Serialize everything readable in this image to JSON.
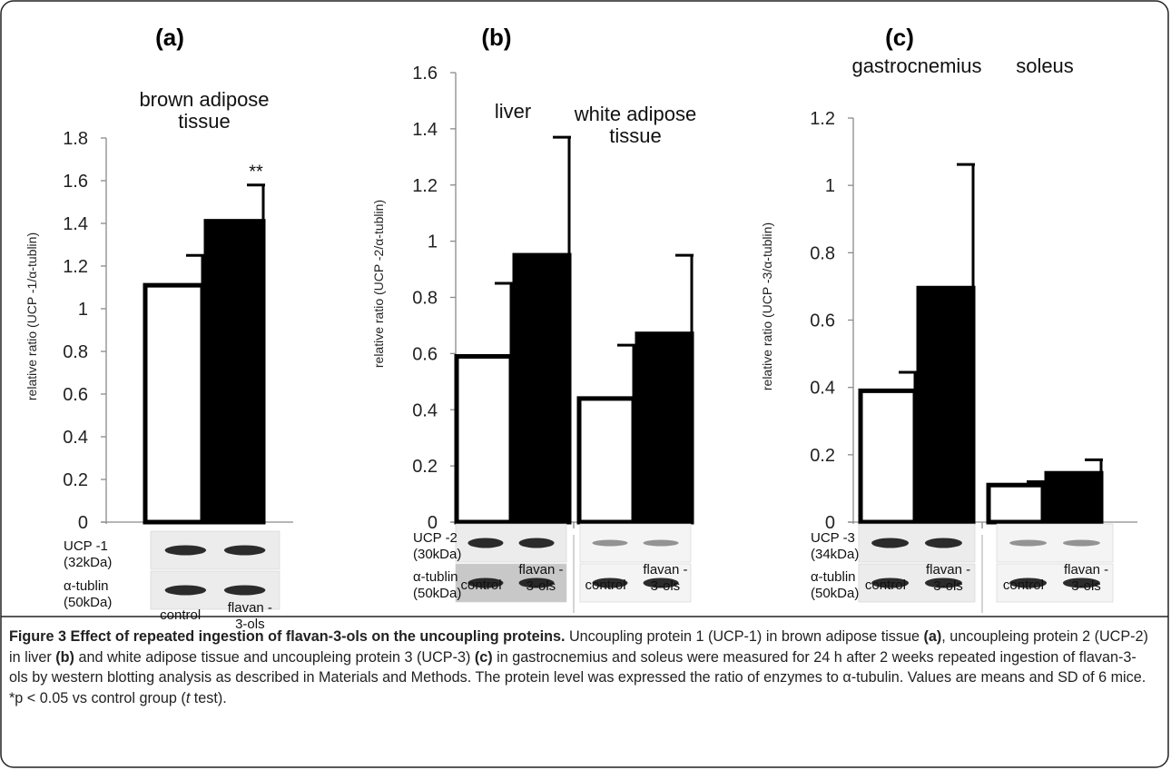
{
  "panels": [
    {
      "label": "(a)",
      "ylabel": "relative ratio (UCP -1/α-tublin)",
      "blot_rows": [
        {
          "name": "UCP -1",
          "kda": "(32kDa)"
        },
        {
          "name": "α-tublin",
          "kda": "(50kDa)"
        }
      ],
      "xgroup_labels": [
        {
          "control": "control",
          "flavan_1": "flavan -",
          "flavan_2": "3-ols"
        }
      ]
    },
    {
      "label": "(b)",
      "ylabel": "relative ratio (UCP -2/α-tublin)",
      "blot_rows": [
        {
          "name": "UCP -2",
          "kda": "(30kDa)"
        },
        {
          "name": "α-tublin",
          "kda": "(50kDa)"
        }
      ],
      "xgroup_labels": [
        {
          "control": "control",
          "flavan_1": "flavan -",
          "flavan_2": "3-ols"
        },
        {
          "control": "control",
          "flavan_1": "flavan -",
          "flavan_2": "3-ols"
        }
      ]
    },
    {
      "label": "(c)",
      "ylabel": "relative ratio (UCP -3/α-tublin)",
      "blot_rows": [
        {
          "name": "UCP -3",
          "kda": "(34kDa)"
        },
        {
          "name": "α-tublin",
          "kda": "(50kDa)"
        }
      ],
      "xgroup_labels": [
        {
          "control": "control",
          "flavan_1": "flavan -",
          "flavan_2": "3-ols"
        },
        {
          "control": "control",
          "flavan_1": "flavan -",
          "flavan_2": "3-ols"
        }
      ]
    }
  ],
  "chart_data": [
    {
      "type": "bar",
      "title": "",
      "xlabel": "",
      "ylabel": "relative ratio (UCP -1/α-tublin)",
      "ylim": [
        0,
        1.8
      ],
      "yticks": [
        "0",
        "0.2",
        "0.4",
        "0.6",
        "0.8",
        "1",
        "1.2",
        "1.4",
        "1.6",
        "1.8"
      ],
      "grid": false,
      "groups": [
        {
          "name": "brown adipose tissue",
          "name_lines": [
            "brown adipose",
            "tissue"
          ],
          "annotation": "**",
          "bars": [
            {
              "value": 1.11,
              "sd": 0.14,
              "color": "#ffffff"
            },
            {
              "value": 1.41,
              "sd": 0.17,
              "color": "#000000"
            }
          ]
        }
      ]
    },
    {
      "type": "bar",
      "title": "",
      "xlabel": "",
      "ylabel": "relative ratio (UCP -2/α-tublin)",
      "ylim": [
        0,
        1.6
      ],
      "yticks": [
        "0",
        "0.2",
        "0.4",
        "0.6",
        "0.8",
        "1",
        "1.2",
        "1.4",
        "1.6"
      ],
      "grid": false,
      "groups": [
        {
          "name": "liver",
          "name_lines": [
            "liver"
          ],
          "annotation": "",
          "bars": [
            {
              "value": 0.59,
              "sd": 0.26,
              "color": "#ffffff"
            },
            {
              "value": 0.95,
              "sd": 0.42,
              "color": "#000000"
            }
          ]
        },
        {
          "name": "white adipose tissue",
          "name_lines": [
            "white adipose",
            "tissue"
          ],
          "annotation": "",
          "bars": [
            {
              "value": 0.44,
              "sd": 0.19,
              "color": "#ffffff"
            },
            {
              "value": 0.67,
              "sd": 0.28,
              "color": "#000000"
            }
          ]
        }
      ]
    },
    {
      "type": "bar",
      "title": "",
      "xlabel": "",
      "ylabel": "relative ratio (UCP -3/α-tublin)",
      "ylim": [
        0,
        1.2
      ],
      "yticks": [
        "0",
        "0.2",
        "0.4",
        "0.6",
        "0.8",
        "1",
        "1.2"
      ],
      "grid": false,
      "groups": [
        {
          "name": "gastrocnemius",
          "name_lines": [
            "gastrocnemius"
          ],
          "annotation": "",
          "bars": [
            {
              "value": 0.39,
              "sd": 0.055,
              "color": "#ffffff"
            },
            {
              "value": 0.695,
              "sd": 0.367,
              "color": "#000000"
            }
          ]
        },
        {
          "name": "soleus",
          "name_lines": [
            "soleus"
          ],
          "annotation": "",
          "bars": [
            {
              "value": 0.11,
              "sd": 0.01,
              "color": "#ffffff"
            },
            {
              "value": 0.145,
              "sd": 0.04,
              "color": "#000000"
            }
          ]
        }
      ]
    }
  ],
  "caption": {
    "title": "Figure 3 Effect of repeated ingestion of flavan-3-ols on the uncoupling proteins.",
    "segments": [
      {
        "t": " Uncoupling protein 1 (UCP-1) in brown adipose tissue ",
        "b": false
      },
      {
        "t": "(a)",
        "b": true
      },
      {
        "t": ", uncoupleing protein 2 (UCP-2) in liver ",
        "b": false
      },
      {
        "t": "(b)",
        "b": true
      },
      {
        "t": " and white adipose tissue and uncoupleing protein 3 (UCP-3) ",
        "b": false
      },
      {
        "t": "(c)",
        "b": true
      },
      {
        "t": " in gastrocnemius and soleus were measured for 24 h after 2 weeks repeated ingestion of flavan-3-ols by western blotting analysis as described in Materials and Methods. The protein level was expressed the ratio of enzymes to α-tubulin. Values are means and SD of 6 mice. *p < 0.05 vs control group (",
        "b": false
      },
      {
        "t": "t",
        "b": false,
        "i": true
      },
      {
        "t": " test).",
        "b": false
      }
    ]
  }
}
